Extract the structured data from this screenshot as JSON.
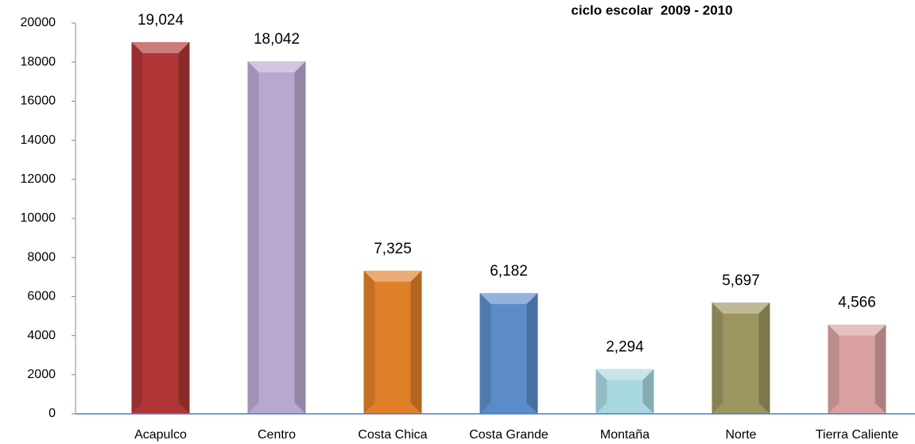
{
  "chart_data": {
    "type": "bar",
    "title": "ciclo escolar  2009 - 2010",
    "categories": [
      "Acapulco",
      "Centro",
      "Costa Chica",
      "Costa Grande",
      "Montaña",
      "Norte",
      "Tierra Caliente"
    ],
    "values": [
      19024,
      18042,
      7325,
      6182,
      2294,
      5697,
      4566
    ],
    "value_labels": [
      "19,024",
      "18,042",
      "7,325",
      "6,182",
      "2,294",
      "5,697",
      "4,566"
    ],
    "colors": [
      "#b03535",
      "#b8a8d0",
      "#e07f2a",
      "#5b8bc9",
      "#a8d8e0",
      "#9c9560",
      "#d9a0a0"
    ],
    "ylim": [
      0,
      20000
    ],
    "yticks": [
      0,
      2000,
      4000,
      6000,
      8000,
      10000,
      12000,
      14000,
      16000,
      18000,
      20000
    ],
    "grid": false
  }
}
